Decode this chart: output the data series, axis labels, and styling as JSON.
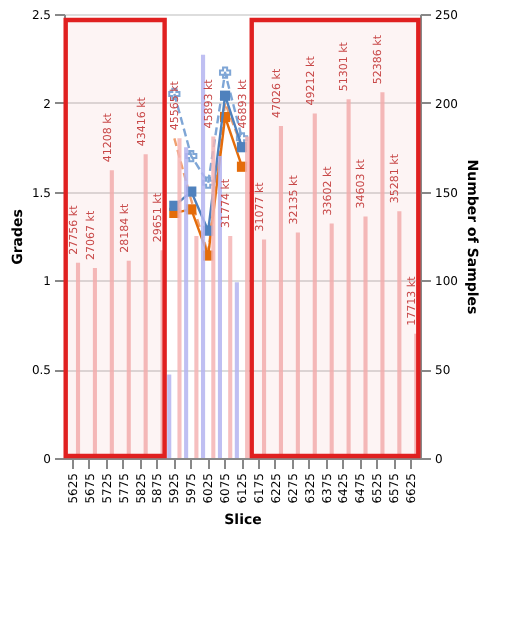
{
  "chart_data": {
    "type": "line",
    "xlabel": "Slice",
    "ylabel": "Grades",
    "y2label": "Number of Samples",
    "categories": [
      "5625",
      "5675",
      "5725",
      "5775",
      "5825",
      "5875",
      "5925",
      "5975",
      "6025",
      "6075",
      "6125",
      "6175",
      "6225",
      "6275",
      "6325",
      "6375",
      "6425",
      "6475",
      "6525",
      "6575",
      "6625"
    ],
    "series": [
      {
        "type": "bar",
        "axis": "y2",
        "color": "#f4b4b4",
        "values": [
          110,
          107,
          162,
          111,
          171,
          117,
          180,
          125,
          181,
          125,
          181,
          123,
          187,
          127,
          194,
          132,
          202,
          136,
          206,
          139,
          70
        ]
      },
      {
        "type": "bar",
        "axis": "y2",
        "color": "#b4b4f0",
        "values": [
          null,
          null,
          null,
          null,
          null,
          null,
          47,
          175,
          227,
          170,
          99,
          null,
          null,
          null,
          null,
          null,
          null,
          null,
          null,
          null,
          null
        ]
      },
      {
        "type": "line",
        "color": "#4f81bd",
        "marker": "square",
        "line_style": "solid",
        "values": [
          null,
          null,
          null,
          null,
          null,
          null,
          1.42,
          1.5,
          1.28,
          2.04,
          1.75,
          null,
          null,
          null,
          null,
          null,
          null,
          null,
          null,
          null,
          null
        ]
      },
      {
        "type": "line",
        "color": "#e46c0a",
        "marker": "square",
        "line_style": "solid",
        "values": [
          null,
          null,
          null,
          null,
          null,
          null,
          1.38,
          1.4,
          1.14,
          1.92,
          1.64,
          null,
          null,
          null,
          null,
          null,
          null,
          null,
          null,
          null,
          null
        ]
      },
      {
        "type": "line",
        "color": "#7fa6d6",
        "marker": "cross",
        "line_style": "dashed",
        "values": [
          null,
          null,
          null,
          null,
          null,
          null,
          2.05,
          1.7,
          1.55,
          2.17,
          1.8,
          null,
          null,
          null,
          null,
          null,
          null,
          null,
          null,
          null,
          null
        ]
      },
      {
        "type": "line",
        "color": "#f0a070",
        "marker": "none",
        "line_style": "dashed",
        "values": [
          null,
          null,
          null,
          null,
          null,
          null,
          1.8,
          1.45,
          1.15,
          2.0,
          1.75,
          null,
          null,
          null,
          null,
          null,
          null,
          null,
          null,
          null,
          null
        ]
      }
    ],
    "annotations": [
      "27756 kt",
      "27067 kt",
      "41208 kt",
      "28184 kt",
      "43416 kt",
      "29651 kt",
      "45565 kt",
      "45893 kt",
      "31774 kt",
      "46893 kt",
      "31077 kt",
      "47026 kt",
      "32135 kt",
      "49212 kt",
      "33602 kt",
      "51301 kt",
      "34603 kt",
      "52386 kt",
      "35281 kt",
      "17713 kt"
    ],
    "ylim": [
      0,
      2.5
    ],
    "yticks": [
      0,
      0.5,
      1,
      1.5,
      2,
      2.5
    ],
    "y2lim": [
      0,
      250
    ],
    "y2ticks": [
      0,
      50,
      100,
      150,
      200,
      250
    ],
    "grid": "y",
    "bands": [
      {
        "axis": "x",
        "from": "5625",
        "to": "5875",
        "color": "#e02020"
      },
      {
        "axis": "x",
        "from": "6175",
        "to": "6625",
        "color": "#e02020"
      }
    ]
  }
}
